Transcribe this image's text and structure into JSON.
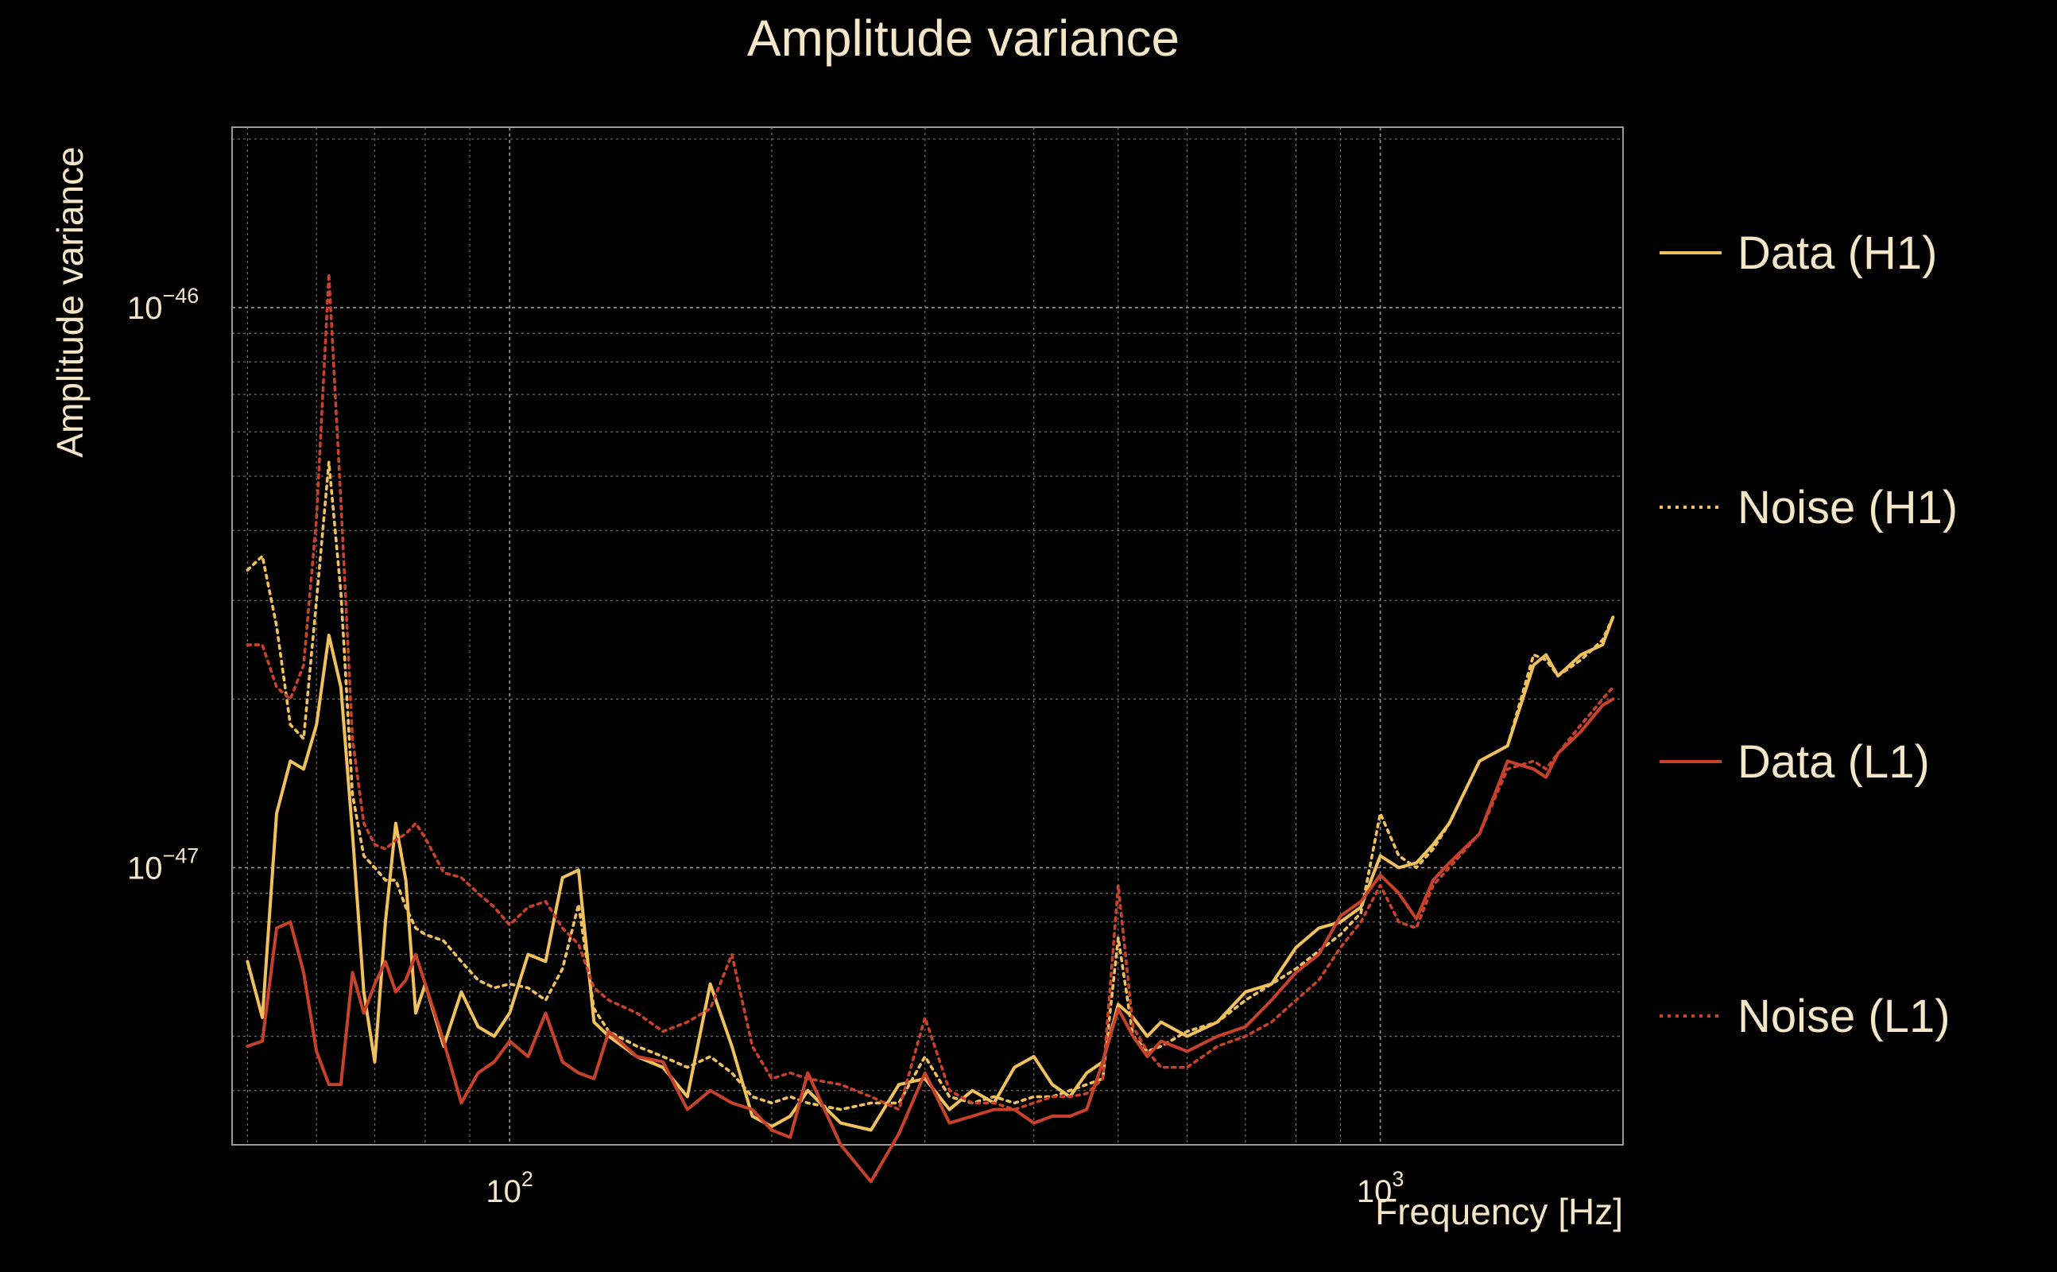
{
  "chart_data": {
    "type": "line",
    "title": "Amplitude variance",
    "xlabel": "Frequency [Hz]",
    "ylabel": "Amplitude variance",
    "x_scale": "log",
    "y_scale": "log",
    "xlim": [
      48,
      1900
    ],
    "ylim": [
      3.2e-48,
      2.1e-46
    ],
    "x_ticks": [
      {
        "value": 100,
        "base": "10",
        "exp": "2"
      },
      {
        "value": 1000,
        "base": "10",
        "exp": "3"
      }
    ],
    "y_ticks": [
      {
        "value": 1e-47,
        "base": "10",
        "exp": "−47"
      },
      {
        "value": 1e-46,
        "base": "10",
        "exp": "−46"
      }
    ],
    "grid": true,
    "legend_position": "right",
    "series": [
      {
        "name": "Data (H1)",
        "color": "#f1c15d",
        "style": "solid",
        "x": [
          50,
          52,
          54,
          56,
          58,
          60,
          62,
          64,
          66,
          68,
          70,
          72,
          74,
          76,
          78,
          80,
          84,
          88,
          92,
          96,
          100,
          105,
          110,
          115,
          120,
          125,
          130,
          140,
          150,
          160,
          170,
          180,
          190,
          200,
          210,
          220,
          240,
          260,
          280,
          300,
          320,
          340,
          360,
          380,
          400,
          420,
          440,
          460,
          480,
          500,
          520,
          540,
          560,
          600,
          650,
          700,
          750,
          800,
          850,
          900,
          950,
          1000,
          1050,
          1100,
          1150,
          1200,
          1300,
          1400,
          1500,
          1550,
          1600,
          1700,
          1800,
          1850
        ],
        "values": [
          6.8e-48,
          5.4e-48,
          1.25e-47,
          1.55e-47,
          1.5e-47,
          1.8e-47,
          2.6e-47,
          2.1e-47,
          1.15e-47,
          6e-48,
          4.5e-48,
          8e-48,
          1.2e-47,
          9.5e-48,
          5.5e-48,
          6.2e-48,
          4.8e-48,
          6e-48,
          5.2e-48,
          5e-48,
          5.5e-48,
          7e-48,
          6.8e-48,
          9.6e-48,
          9.9e-48,
          5.3e-48,
          5e-48,
          4.6e-48,
          4.4e-48,
          3.9e-48,
          6.2e-48,
          4.8e-48,
          3.6e-48,
          3.45e-48,
          3.6e-48,
          4e-48,
          3.5e-48,
          3.4e-48,
          4.1e-48,
          4.2e-48,
          3.7e-48,
          4e-48,
          3.8e-48,
          4.4e-48,
          4.6e-48,
          4.1e-48,
          3.9e-48,
          4.3e-48,
          4.5e-48,
          5.7e-48,
          5.4e-48,
          5e-48,
          5.3e-48,
          5e-48,
          5.3e-48,
          6e-48,
          6.2e-48,
          7.2e-48,
          7.8e-48,
          8e-48,
          8.5e-48,
          1.05e-47,
          1e-47,
          1.02e-47,
          1.1e-47,
          1.2e-47,
          1.55e-47,
          1.65e-47,
          2.3e-47,
          2.4e-47,
          2.2e-47,
          2.4e-47,
          2.5e-47,
          2.8e-47
        ]
      },
      {
        "name": "Noise (H1)",
        "color": "#f1c15d",
        "style": "dotted",
        "x": [
          50,
          52,
          54,
          56,
          58,
          60,
          62,
          64,
          66,
          68,
          70,
          72,
          74,
          76,
          78,
          80,
          84,
          88,
          92,
          96,
          100,
          105,
          110,
          115,
          120,
          125,
          130,
          140,
          150,
          160,
          170,
          180,
          190,
          200,
          210,
          220,
          240,
          260,
          280,
          300,
          320,
          340,
          360,
          380,
          400,
          420,
          440,
          460,
          480,
          500,
          520,
          540,
          560,
          600,
          650,
          700,
          750,
          800,
          850,
          900,
          950,
          1000,
          1050,
          1100,
          1150,
          1200,
          1300,
          1400,
          1500,
          1550,
          1600,
          1700,
          1800,
          1850
        ],
        "values": [
          3.4e-47,
          3.6e-47,
          2.7e-47,
          1.8e-47,
          1.7e-47,
          3e-47,
          5.3e-47,
          3.1e-47,
          1.35e-47,
          1.05e-47,
          1e-47,
          9.5e-48,
          9.5e-48,
          8.5e-48,
          7.8e-48,
          7.6e-48,
          7.4e-48,
          6.8e-48,
          6.3e-48,
          6.1e-48,
          6.2e-48,
          6.1e-48,
          5.8e-48,
          6.6e-48,
          8.6e-48,
          5.6e-48,
          5.1e-48,
          4.8e-48,
          4.6e-48,
          4.4e-48,
          4.6e-48,
          4.3e-48,
          3.9e-48,
          3.8e-48,
          3.9e-48,
          3.8e-48,
          3.7e-48,
          3.8e-48,
          3.8e-48,
          4.6e-48,
          3.9e-48,
          3.8e-48,
          3.9e-48,
          3.8e-48,
          3.9e-48,
          3.9e-48,
          4e-48,
          4.1e-48,
          4.2e-48,
          7.5e-48,
          5e-48,
          4.7e-48,
          4.8e-48,
          5.1e-48,
          5.3e-48,
          5.8e-48,
          6.2e-48,
          6.6e-48,
          7.1e-48,
          7.6e-48,
          8.3e-48,
          1.25e-47,
          1.05e-47,
          1e-47,
          1.08e-47,
          1.2e-47,
          1.55e-47,
          1.65e-47,
          2.4e-47,
          2.35e-47,
          2.2e-47,
          2.35e-47,
          2.55e-47,
          2.8e-47
        ]
      },
      {
        "name": "Data (L1)",
        "color": "#c8412a",
        "style": "solid",
        "x": [
          50,
          52,
          54,
          56,
          58,
          60,
          62,
          64,
          66,
          68,
          70,
          72,
          74,
          76,
          78,
          80,
          84,
          88,
          92,
          96,
          100,
          105,
          110,
          115,
          120,
          125,
          130,
          140,
          150,
          160,
          170,
          180,
          190,
          200,
          210,
          220,
          240,
          260,
          280,
          300,
          320,
          340,
          360,
          380,
          400,
          420,
          440,
          460,
          480,
          500,
          520,
          540,
          560,
          600,
          650,
          700,
          750,
          800,
          850,
          900,
          950,
          1000,
          1050,
          1100,
          1150,
          1200,
          1300,
          1400,
          1500,
          1550,
          1600,
          1700,
          1800,
          1850
        ],
        "values": [
          4.8e-48,
          4.9e-48,
          7.8e-48,
          8e-48,
          6.5e-48,
          4.7e-48,
          4.1e-48,
          4.1e-48,
          6.5e-48,
          5.5e-48,
          6.2e-48,
          6.8e-48,
          6e-48,
          6.3e-48,
          7e-48,
          6.2e-48,
          4.9e-48,
          3.8e-48,
          4.3e-48,
          4.5e-48,
          4.9e-48,
          4.6e-48,
          5.5e-48,
          4.5e-48,
          4.3e-48,
          4.2e-48,
          5.1e-48,
          4.6e-48,
          4.5e-48,
          3.7e-48,
          4e-48,
          3.8e-48,
          3.7e-48,
          3.4e-48,
          3.3e-48,
          4.3e-48,
          3.2e-48,
          2.75e-48,
          3.35e-48,
          4.3e-48,
          3.5e-48,
          3.6e-48,
          3.7e-48,
          3.7e-48,
          3.5e-48,
          3.6e-48,
          3.6e-48,
          3.7e-48,
          4.5e-48,
          5.6e-48,
          5e-48,
          4.6e-48,
          4.9e-48,
          4.7e-48,
          5e-48,
          5.2e-48,
          5.8e-48,
          6.5e-48,
          7e-48,
          8.2e-48,
          8.7e-48,
          9.7e-48,
          9e-48,
          8.1e-48,
          9.5e-48,
          1.02e-47,
          1.15e-47,
          1.55e-47,
          1.5e-47,
          1.45e-47,
          1.6e-47,
          1.75e-47,
          1.95e-47,
          2e-47
        ]
      },
      {
        "name": "Noise (L1)",
        "color": "#c8412a",
        "style": "dotted",
        "x": [
          50,
          52,
          54,
          56,
          58,
          60,
          62,
          64,
          66,
          68,
          70,
          72,
          74,
          76,
          78,
          80,
          84,
          88,
          92,
          96,
          100,
          105,
          110,
          115,
          120,
          125,
          130,
          140,
          150,
          160,
          170,
          180,
          190,
          200,
          210,
          220,
          240,
          260,
          280,
          300,
          320,
          340,
          360,
          380,
          400,
          420,
          440,
          460,
          480,
          500,
          520,
          540,
          560,
          600,
          650,
          700,
          750,
          800,
          850,
          900,
          950,
          1000,
          1050,
          1100,
          1150,
          1200,
          1300,
          1400,
          1500,
          1550,
          1600,
          1700,
          1800,
          1850
        ],
        "values": [
          2.5e-47,
          2.5e-47,
          2.1e-47,
          2e-47,
          2.3e-47,
          4.2e-47,
          1.15e-46,
          4.5e-47,
          1.7e-47,
          1.2e-47,
          1.1e-47,
          1.08e-47,
          1.12e-47,
          1.15e-47,
          1.2e-47,
          1.13e-47,
          9.8e-48,
          9.6e-48,
          9e-48,
          8.5e-48,
          7.9e-48,
          8.5e-48,
          8.7e-48,
          7.8e-48,
          7.3e-48,
          6.1e-48,
          5.8e-48,
          5.5e-48,
          5.1e-48,
          5.3e-48,
          5.6e-48,
          7e-48,
          4.8e-48,
          4.2e-48,
          4.3e-48,
          4.2e-48,
          4.1e-48,
          3.9e-48,
          3.7e-48,
          5.4e-48,
          4e-48,
          3.8e-48,
          3.8e-48,
          3.7e-48,
          3.8e-48,
          3.9e-48,
          3.9e-48,
          3.95e-48,
          4.2e-48,
          9.3e-48,
          5.2e-48,
          4.7e-48,
          4.4e-48,
          4.4e-48,
          4.8e-48,
          5e-48,
          5.3e-48,
          5.8e-48,
          6.3e-48,
          7.2e-48,
          8e-48,
          9.3e-48,
          8e-48,
          7.8e-48,
          9.3e-48,
          1e-47,
          1.15e-47,
          1.5e-47,
          1.55e-47,
          1.5e-47,
          1.6e-47,
          1.8e-47,
          2e-47,
          2.1e-47
        ]
      }
    ]
  }
}
